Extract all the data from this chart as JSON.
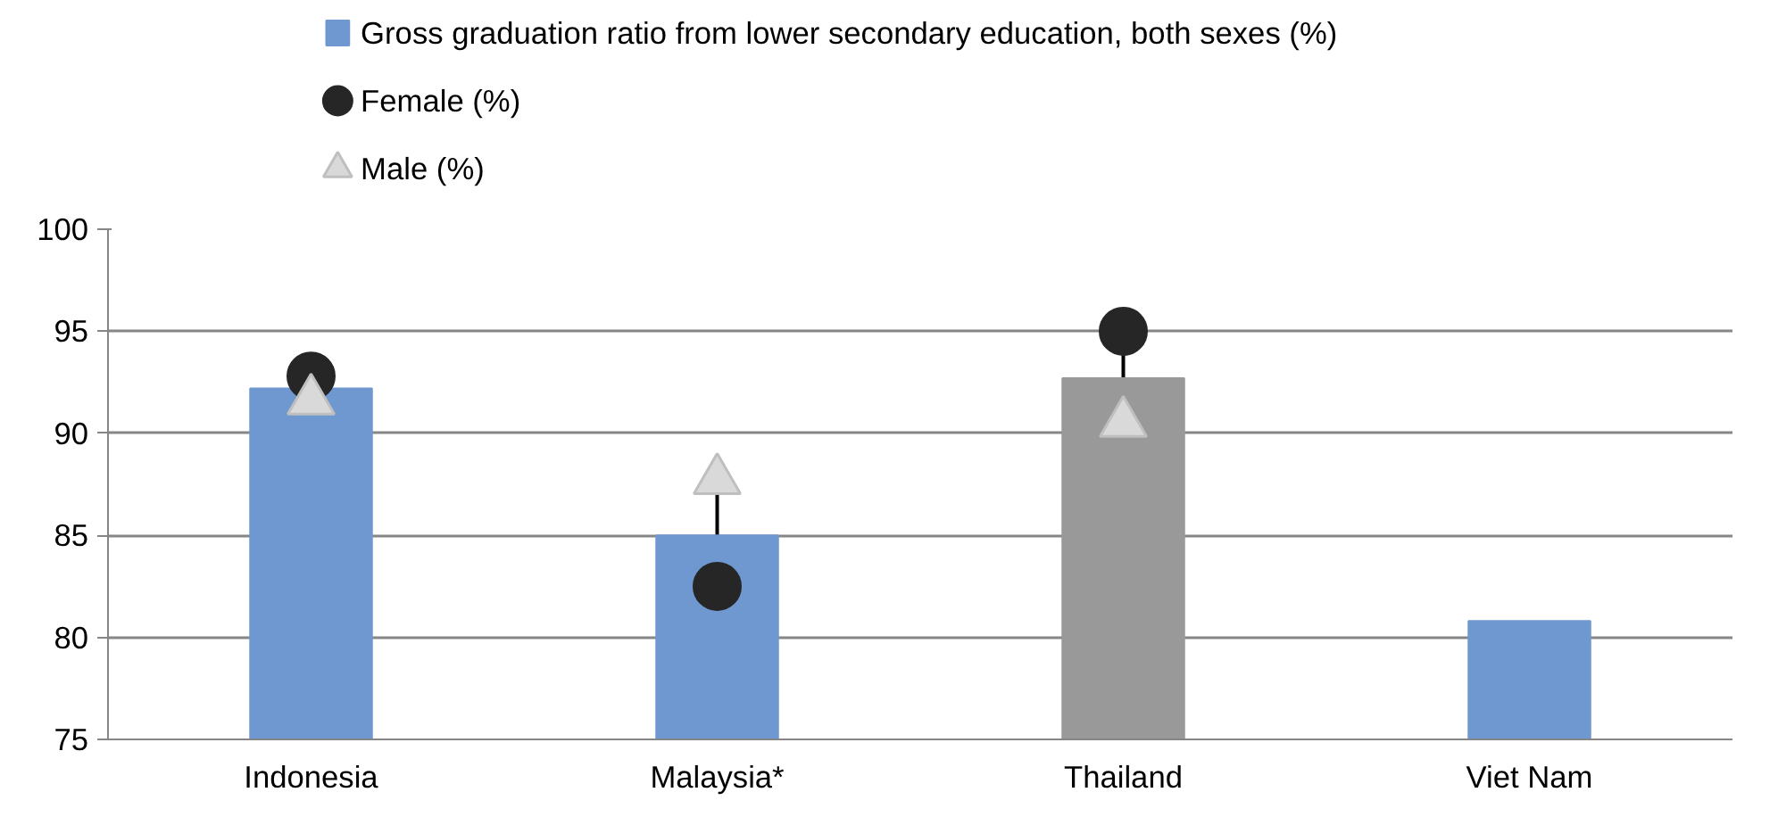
{
  "chart_data": {
    "type": "bar",
    "categories": [
      "Indonesia",
      "Malaysia*",
      "Thailand",
      "Viet Nam"
    ],
    "series": [
      {
        "name": "Gross graduation ratio from lower secondary education, both sexes (%)",
        "colors": [
          "#6f98d0",
          "#6f98d0",
          "#999999",
          "#6f98d0"
        ],
        "values": [
          92.2,
          85.0,
          92.7,
          80.8
        ]
      },
      {
        "name": "Female (%)",
        "type": "scatter",
        "marker": "circle",
        "color": "#262626",
        "values": [
          92.8,
          82.5,
          95.0,
          null
        ]
      },
      {
        "name": "Male (%)",
        "type": "scatter",
        "marker": "triangle",
        "color": "#d9d9d9",
        "values": [
          91.6,
          87.7,
          90.5,
          null
        ]
      }
    ],
    "ylim": [
      75,
      100
    ],
    "yticks": [
      75,
      80,
      85,
      90,
      95,
      100
    ],
    "grid": "y",
    "legend": "top"
  }
}
